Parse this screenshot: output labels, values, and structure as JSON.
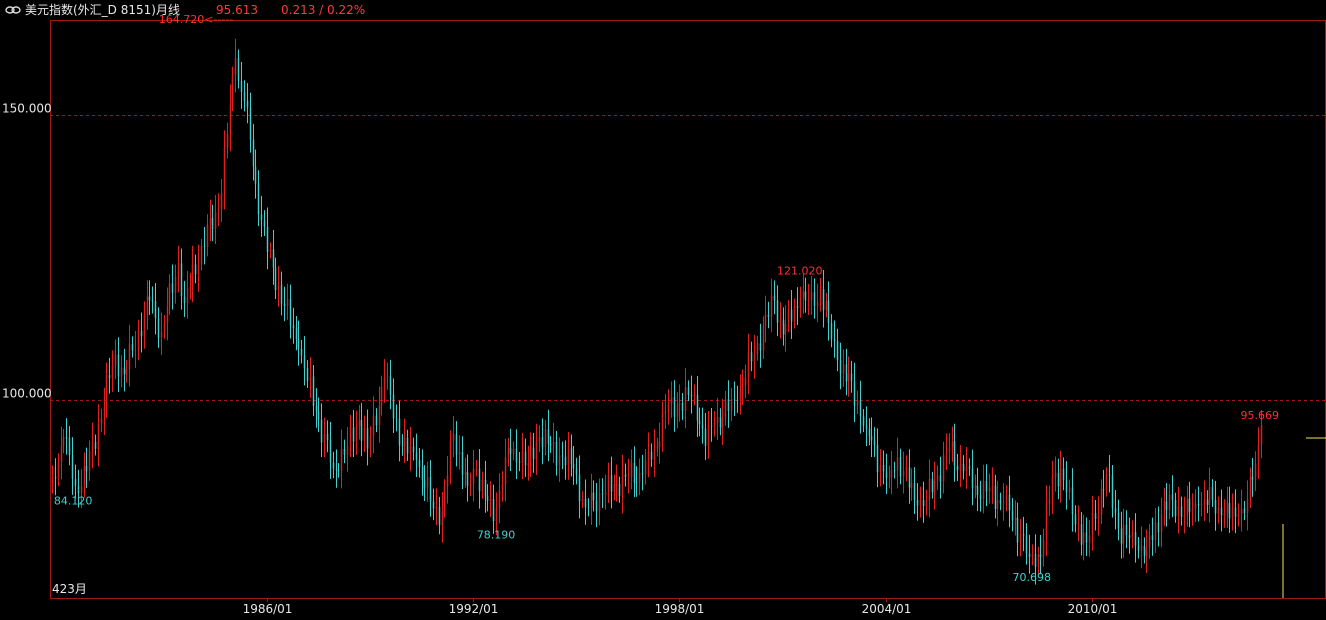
{
  "header": {
    "title": "美元指数(外汇_D 8151)月线",
    "last_price": "95.613",
    "change": "0.213 / 0.22%"
  },
  "colors": {
    "up": "#e02020",
    "down": "#40d0d0",
    "grid": "#a01818",
    "frame": "#a01818",
    "text": "#e8e8e8",
    "max_label": "#ff3030",
    "min_label": "#40d0d0",
    "cursor": "#ffe060"
  },
  "chart_data": {
    "type": "candlestick",
    "series_name": "美元指数 月线",
    "bar_count_label": "423月",
    "ylim": [
      66.0,
      166.5
    ],
    "y_ticks": [
      {
        "value": 100.0,
        "label": "100.000"
      },
      {
        "value": 150.0,
        "label": "150.000"
      }
    ],
    "x_ticks": [
      {
        "date": "1986-01",
        "label": "1986/01"
      },
      {
        "date": "1992-01",
        "label": "1992/01"
      },
      {
        "date": "1998-01",
        "label": "1998/01"
      },
      {
        "date": "2004-01",
        "label": "2004/01"
      },
      {
        "date": "2010-01",
        "label": "2010/01"
      }
    ],
    "start": "1979-10",
    "end": "2014-12",
    "anchors": [
      [
        "1979-10",
        86.5
      ],
      [
        "1980-02",
        93.5
      ],
      [
        "1980-06",
        85.0
      ],
      [
        "1980-10",
        87.5
      ],
      [
        "1981-08",
        108.0
      ],
      [
        "1981-11",
        104.5
      ],
      [
        "1982-08",
        117.5
      ],
      [
        "1982-12",
        112.0
      ],
      [
        "1983-06",
        124.0
      ],
      [
        "1983-08",
        117.0
      ],
      [
        "1984-02",
        127.0
      ],
      [
        "1984-08",
        133.5
      ],
      [
        "1985-02",
        160.0
      ],
      [
        "1985-03",
        156.0
      ],
      [
        "1985-05",
        152.5
      ],
      [
        "1985-09",
        138.0
      ],
      [
        "1986-01",
        126.0
      ],
      [
        "1986-12",
        109.0
      ],
      [
        "1987-06",
        98.0
      ],
      [
        "1987-12",
        88.0
      ],
      [
        "1988-05",
        92.0
      ],
      [
        "1988-09",
        96.5
      ],
      [
        "1988-12",
        91.5
      ],
      [
        "1989-06",
        104.0
      ],
      [
        "1989-12",
        92.0
      ],
      [
        "1990-05",
        89.5
      ],
      [
        "1990-11",
        81.0
      ],
      [
        "1991-02",
        80.5
      ],
      [
        "1991-06",
        94.0
      ],
      [
        "1991-11",
        85.0
      ],
      [
        "1992-02",
        88.0
      ],
      [
        "1992-08",
        78.8
      ],
      [
        "1992-12",
        90.0
      ],
      [
        "1993-03",
        91.5
      ],
      [
        "1993-08",
        89.0
      ],
      [
        "1993-12",
        93.5
      ],
      [
        "1994-04",
        92.0
      ],
      [
        "1994-12",
        88.0
      ],
      [
        "1995-04",
        81.2
      ],
      [
        "1995-10",
        83.5
      ],
      [
        "1996-06",
        86.5
      ],
      [
        "1996-12",
        87.0
      ],
      [
        "1997-04",
        91.5
      ],
      [
        "1997-08",
        98.0
      ],
      [
        "1998-01",
        99.5
      ],
      [
        "1998-06",
        101.0
      ],
      [
        "1998-10",
        92.0
      ],
      [
        "1999-01",
        96.0
      ],
      [
        "1999-09",
        100.0
      ],
      [
        "2000-04",
        110.0
      ],
      [
        "2000-10",
        117.5
      ],
      [
        "2001-01",
        111.5
      ],
      [
        "2001-07",
        118.0
      ],
      [
        "2001-12",
        116.5
      ],
      [
        "2002-02",
        119.5
      ],
      [
        "2002-05",
        113.5
      ],
      [
        "2002-08",
        107.0
      ],
      [
        "2003-03",
        100.0
      ],
      [
        "2003-06",
        95.0
      ],
      [
        "2003-12",
        87.5
      ],
      [
        "2004-02",
        86.5
      ],
      [
        "2004-05",
        90.0
      ],
      [
        "2004-12",
        81.5
      ],
      [
        "2005-03",
        82.5
      ],
      [
        "2005-11",
        91.5
      ],
      [
        "2006-04",
        87.5
      ],
      [
        "2006-08",
        85.0
      ],
      [
        "2006-12",
        84.0
      ],
      [
        "2007-06",
        82.0
      ],
      [
        "2007-12",
        76.5
      ],
      [
        "2008-03",
        72.5
      ],
      [
        "2008-07",
        72.5
      ],
      [
        "2008-11",
        86.5
      ],
      [
        "2009-02",
        88.0
      ],
      [
        "2009-06",
        80.0
      ],
      [
        "2009-11",
        75.0
      ],
      [
        "2010-06",
        87.0
      ],
      [
        "2010-10",
        77.5
      ],
      [
        "2011-04",
        74.5
      ],
      [
        "2011-08",
        74.0
      ],
      [
        "2012-01",
        80.0
      ],
      [
        "2012-05",
        82.5
      ],
      [
        "2012-09",
        79.8
      ],
      [
        "2013-02",
        81.5
      ],
      [
        "2013-07",
        82.5
      ],
      [
        "2013-10",
        79.8
      ],
      [
        "2014-04",
        80.0
      ],
      [
        "2014-06",
        80.2
      ],
      [
        "2014-09",
        86.0
      ],
      [
        "2014-12",
        95.6
      ]
    ],
    "annotations": {
      "max": {
        "date": "1985-02",
        "value": 164.72,
        "label": "164.720<-----"
      },
      "min_1979": {
        "date": "1979-11",
        "value": 84.12,
        "label": "84.120"
      },
      "min_1992": {
        "date": "1992-09",
        "value": 78.19,
        "label": "78.190"
      },
      "max_2001": {
        "date": "2001-07",
        "value": 121.02,
        "label": "121.020"
      },
      "min_2008": {
        "date": "2008-04",
        "value": 70.698,
        "label": "70.698"
      },
      "last": {
        "date": "2014-12",
        "value": 95.669,
        "label": "95.669"
      }
    },
    "cursor_date": "2015-01",
    "grid": true,
    "legend": "none"
  }
}
